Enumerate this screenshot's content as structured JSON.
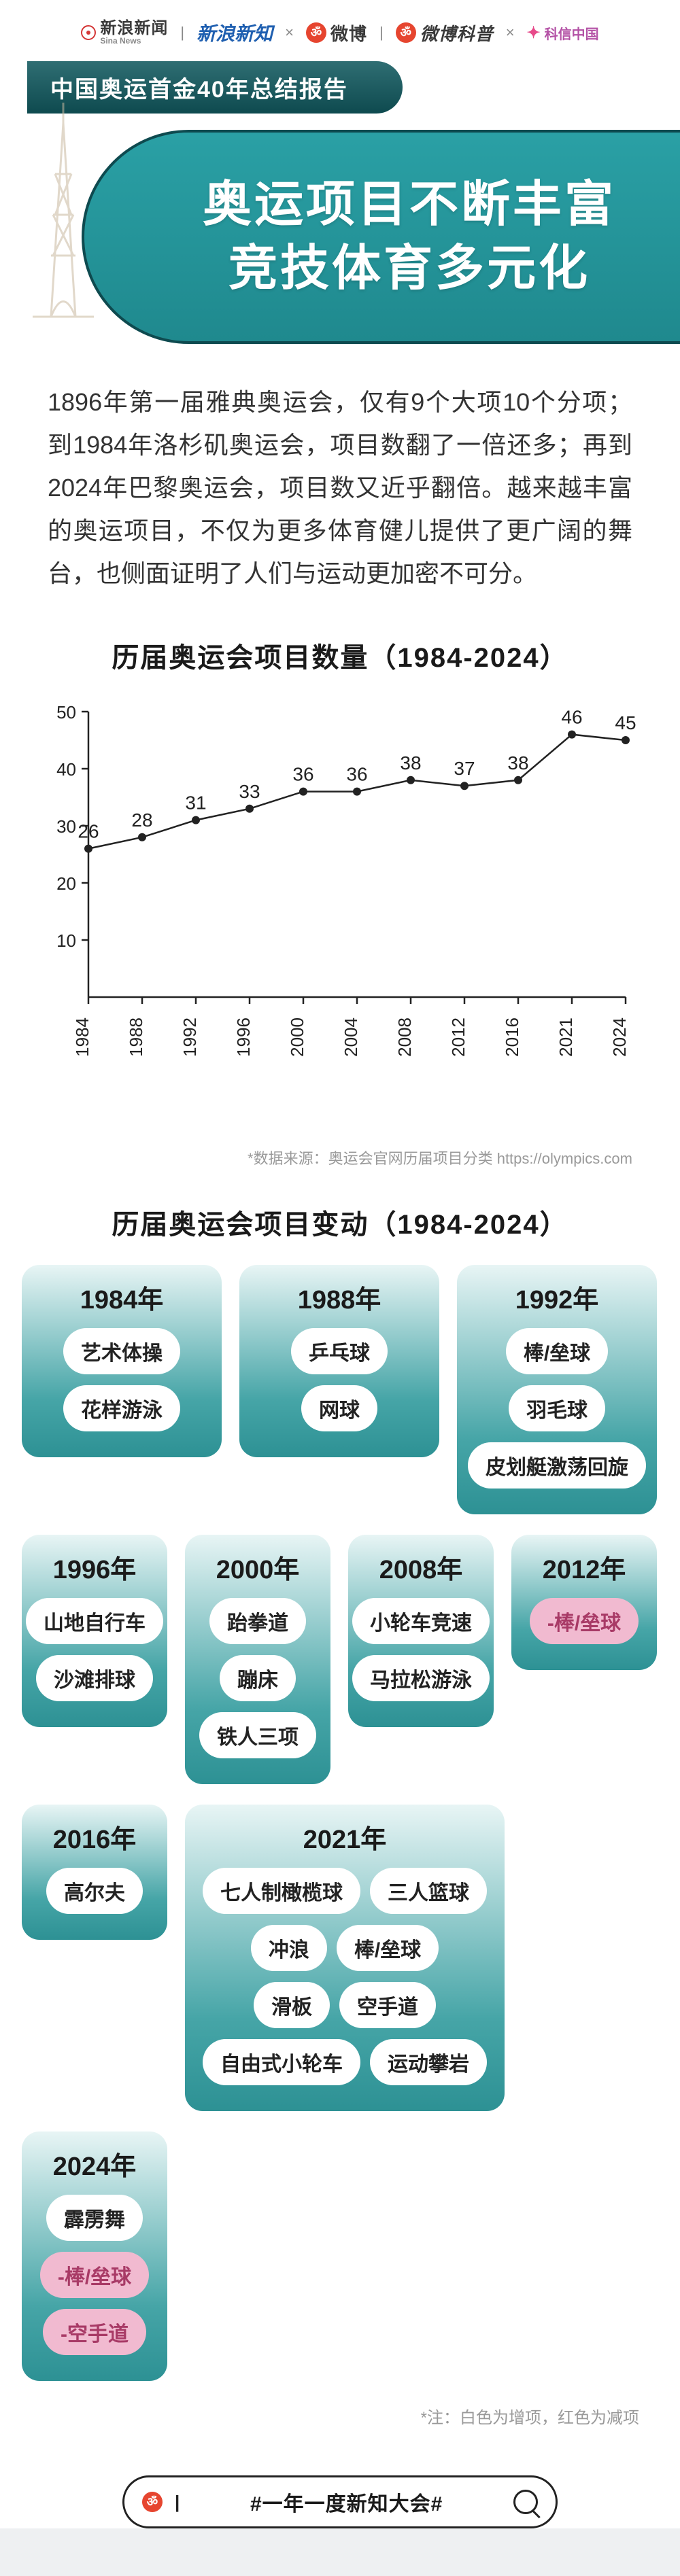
{
  "logos": {
    "sina_news_cn": "新浪新闻",
    "sina_news_en": "Sina News",
    "xinzhi": "新浪新知",
    "weibo": "微博",
    "weibo_kepu": "微博科普",
    "kexin": "科信中国"
  },
  "ribbon": "中国奥运首金40年总结报告",
  "hero": {
    "line1": "奥运项目不断丰富",
    "line2": "竞技体育多元化"
  },
  "intro": "1896年第一届雅典奥运会，仅有9个大项10个分项；到1984年洛杉矶奥运会，项目数翻了一倍还多；再到2024年巴黎奥运会，项目数又近乎翻倍。越来越丰富的奥运项目，不仅为更多体育健儿提供了更广阔的舞台，也侧面证明了人们与运动更加密不可分。",
  "chart": {
    "title": "历届奥运会项目数量（1984-2024）",
    "type": "line",
    "years": [
      "1984",
      "1988",
      "1992",
      "1996",
      "2000",
      "2004",
      "2008",
      "2012",
      "2016",
      "2021",
      "2024"
    ],
    "values": [
      26,
      28,
      31,
      33,
      36,
      36,
      38,
      37,
      38,
      46,
      45
    ],
    "ylim": [
      0,
      50
    ],
    "yticks": [
      10,
      20,
      30,
      40,
      50
    ],
    "line_color": "#222222",
    "marker_color": "#222222",
    "marker_size": 6,
    "line_width": 2.5,
    "axis_color": "#222222",
    "label_fontsize": 26,
    "value_fontsize": 28,
    "aspect": "880x560",
    "source": "*数据来源：奥运会官网历届项目分类 https://olympics.com"
  },
  "changes_title": "历届奥运会项目变动（1984-2024）",
  "cards": [
    {
      "year": "1984年",
      "items": [
        {
          "t": "艺术体操"
        },
        {
          "t": "花样游泳"
        }
      ]
    },
    {
      "year": "1988年",
      "items": [
        {
          "t": "乒乓球"
        },
        {
          "t": "网球"
        }
      ]
    },
    {
      "year": "1992年",
      "items": [
        {
          "t": "棒/垒球"
        },
        {
          "t": "羽毛球"
        },
        {
          "t": "皮划艇激荡回旋"
        }
      ]
    },
    {
      "year": "1996年",
      "items": [
        {
          "t": "山地自行车"
        },
        {
          "t": "沙滩排球"
        }
      ]
    },
    {
      "year": "2000年",
      "items": [
        {
          "t": "跆拳道"
        },
        {
          "t": "蹦床"
        },
        {
          "t": "铁人三项"
        }
      ]
    },
    {
      "year": "2008年",
      "items": [
        {
          "t": "小轮车竞速"
        },
        {
          "t": "马拉松游泳"
        }
      ]
    },
    {
      "year": "2012年",
      "items": [
        {
          "t": "-棒/垒球",
          "removed": true
        }
      ]
    },
    {
      "year": "2016年",
      "items": [
        {
          "t": "高尔夫"
        }
      ]
    },
    {
      "year": "2021年",
      "items": [
        {
          "t": "七人制橄榄球"
        },
        {
          "t": "三人篮球"
        },
        {
          "t": "冲浪"
        },
        {
          "t": "棒/垒球"
        },
        {
          "t": "滑板"
        },
        {
          "t": "空手道"
        },
        {
          "t": "自由式小轮车"
        },
        {
          "t": "运动攀岩"
        }
      ]
    },
    {
      "year": "2024年",
      "items": [
        {
          "t": "霹雳舞"
        },
        {
          "t": "-棒/垒球",
          "removed": true
        },
        {
          "t": "-空手道",
          "removed": true
        }
      ]
    }
  ],
  "cards_note": "*注：白色为增项，红色为减项",
  "footer_hash": "#一年一度新知大会#",
  "colors": {
    "teal_dark": "#0e4a4f",
    "teal_mid": "#2aa0a5",
    "card_grad_top": "#e8f5f5",
    "card_grad_bot": "#2d9194",
    "pill_removed_bg": "#f1bad0",
    "pill_removed_text": "#a83a66"
  }
}
